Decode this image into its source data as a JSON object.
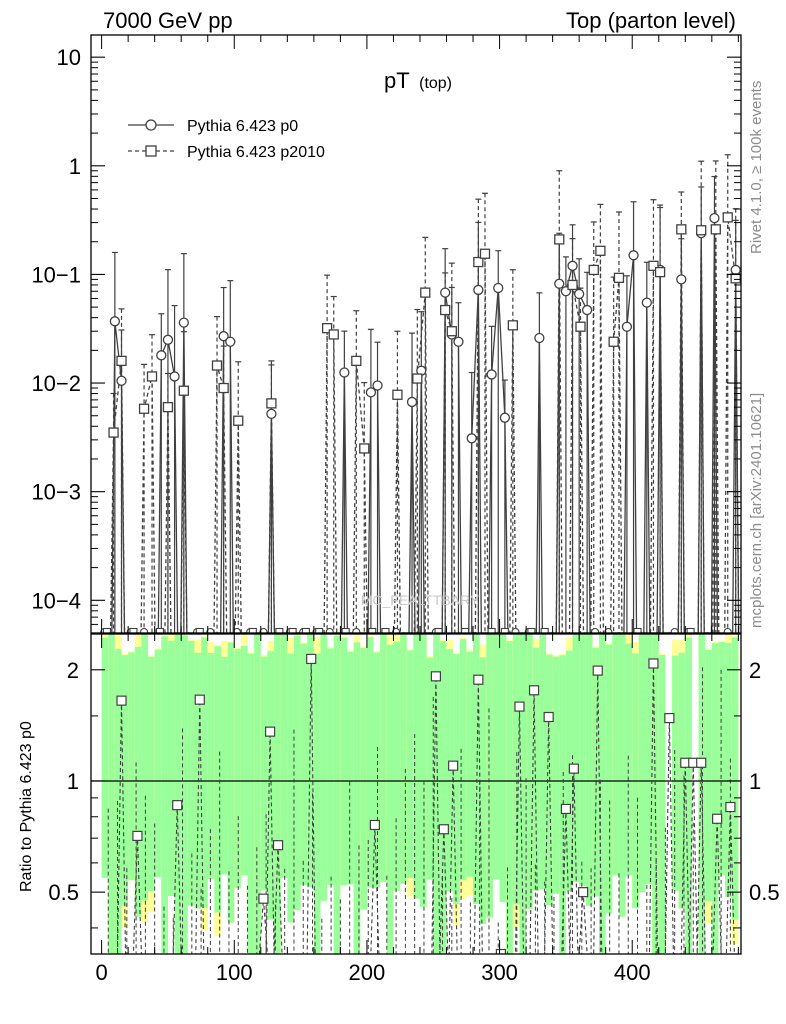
{
  "header": {
    "energy_label": "7000 GeV pp",
    "process_label": "Top (parton level)"
  },
  "side_notes": {
    "rivet": "Rivet 4.1.0, ≥ 100k events",
    "mcplots": "mcplots.cern.ch [arXiv:2401.10621]"
  },
  "watermark": "MC_FEALTTBARY",
  "chart_data": [
    {
      "panel": "main",
      "type": "line",
      "title_main": "pT",
      "title_sub": "(top)",
      "xlabel": "",
      "ylabel": "",
      "yscale": "log",
      "xlim": [
        -8,
        482
      ],
      "ylim": [
        5e-05,
        16
      ],
      "x_ticks": [
        0,
        100,
        200,
        300,
        400
      ],
      "y_tick_labels": [
        {
          "value": 10,
          "label": "10"
        },
        {
          "value": 1,
          "label": "1"
        },
        {
          "value": 0.1,
          "label": "10−1"
        },
        {
          "value": 0.01,
          "label": "10−2"
        },
        {
          "value": 0.001,
          "label": "10−3"
        },
        {
          "value": 0.0001,
          "label": "10−4"
        }
      ],
      "legend_position": "top-left",
      "series": [
        {
          "name": "Pythia 6.423 p0",
          "style": "solid-circle",
          "color": "#404040",
          "x": [
            10,
            15,
            45,
            50,
            55,
            62,
            92,
            97,
            128,
            183,
            203,
            208,
            234,
            241,
            259,
            264,
            269,
            279,
            284,
            294,
            299,
            304,
            330,
            345,
            350,
            355,
            360,
            366,
            396,
            401,
            411,
            421,
            437,
            452,
            462,
            478
          ],
          "y": [
            0.037,
            0.0105,
            0.018,
            0.025,
            0.0115,
            0.036,
            0.027,
            0.024,
            0.0052,
            0.0125,
            0.0082,
            0.0095,
            0.0067,
            0.013,
            0.068,
            0.028,
            0.024,
            0.0031,
            0.072,
            0.012,
            0.075,
            0.0048,
            0.026,
            0.082,
            0.07,
            0.12,
            0.066,
            0.047,
            0.033,
            0.15,
            0.055,
            0.11,
            0.09,
            0.24,
            0.33,
            0.11
          ]
        },
        {
          "name": "Pythia 6.423 p2010",
          "style": "dashed-square",
          "color": "#404040",
          "x": [
            9,
            15,
            32,
            38,
            50,
            62,
            87,
            92,
            103,
            128,
            170,
            175,
            192,
            198,
            223,
            238,
            244,
            259,
            264,
            284,
            289,
            310,
            345,
            355,
            361,
            371,
            376,
            386,
            390,
            416,
            421,
            437,
            452,
            463,
            472,
            478
          ],
          "y": [
            0.0035,
            0.016,
            0.0058,
            0.0115,
            0.006,
            0.0085,
            0.0145,
            0.009,
            0.0045,
            0.0065,
            0.032,
            0.028,
            0.016,
            0.0025,
            0.0078,
            0.011,
            0.068,
            0.047,
            0.03,
            0.13,
            0.155,
            0.034,
            0.21,
            0.08,
            0.033,
            0.11,
            0.165,
            0.024,
            0.093,
            0.12,
            0.105,
            0.26,
            0.255,
            0.26,
            0.335,
            0.092
          ]
        }
      ]
    },
    {
      "panel": "ratio",
      "type": "line",
      "ylabel": "Ratio to Pythia 6.423 p0",
      "xlim": [
        -8,
        482
      ],
      "ylim": [
        0.34,
        2.5
      ],
      "x_ticks": [
        0,
        100,
        200,
        300,
        400
      ],
      "y_ticks": [
        0.5,
        1,
        2
      ],
      "reference_line": 1,
      "bands": {
        "inner_color": "#9aff9a",
        "outer_color": "#ffff99",
        "description": "stat / total uncertainty bands around Pythia 6.423 p0"
      },
      "series": [
        {
          "name": "Pythia 6.423 p2010",
          "style": "dashed-square",
          "color": "#404040",
          "x": [
            15,
            27,
            57,
            74,
            122,
            127,
            133,
            158,
            206,
            258,
            252,
            265,
            284,
            301,
            315,
            326,
            337,
            350,
            356,
            363,
            374,
            416,
            428,
            440,
            446,
            452,
            464,
            474
          ],
          "y": [
            1.65,
            0.71,
            0.86,
            1.66,
            0.48,
            1.36,
            0.67,
            2.14,
            0.76,
            0.74,
            1.92,
            1.1,
            1.88,
            0.34,
            1.59,
            1.76,
            1.49,
            0.84,
            1.08,
            0.5,
            1.99,
            2.08,
            1.48,
            1.12,
            1.12,
            1.12,
            0.79,
            0.85
          ]
        }
      ]
    }
  ]
}
